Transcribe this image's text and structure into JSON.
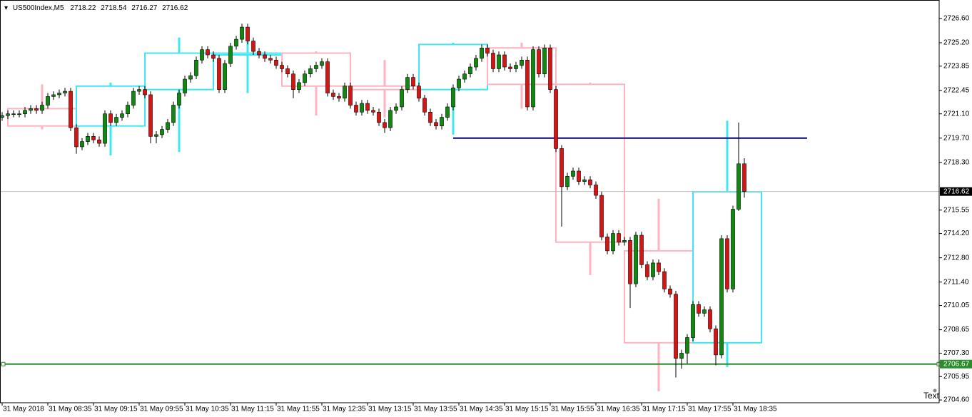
{
  "chart_data": {
    "type": "candlestick",
    "symbol": "US500Index,M5",
    "up_color": "#0b8a0b",
    "down_color": "#e01010",
    "box_up_color": "#3ee8f0",
    "box_down_color": "#ffb3c1",
    "xlim": [
      -0.375,
      164.125
    ],
    "ylim": [
      2704.44,
      2727.5
    ],
    "grid": false,
    "xticks": [
      {
        "value": 0,
        "label": "31 May 2018"
      },
      {
        "value": 8,
        "label": "31 May 08:35"
      },
      {
        "value": 16,
        "label": "31 May 09:15"
      },
      {
        "value": 24,
        "label": "31 May 09:55"
      },
      {
        "value": 32,
        "label": "31 May 10:35"
      },
      {
        "value": 40,
        "label": "31 May 11:15"
      },
      {
        "value": 48,
        "label": "31 May 11:55"
      },
      {
        "value": 56,
        "label": "31 May 12:35"
      },
      {
        "value": 64,
        "label": "31 May 13:15"
      },
      {
        "value": 72,
        "label": "31 May 13:55"
      },
      {
        "value": 80,
        "label": "31 May 14:35"
      },
      {
        "value": 88,
        "label": "31 May 15:15"
      },
      {
        "value": 96,
        "label": "31 May 15:55"
      },
      {
        "value": 104,
        "label": "31 May 16:35"
      },
      {
        "value": 112,
        "label": "31 May 17:15"
      },
      {
        "value": 120,
        "label": "31 May 17:55"
      },
      {
        "value": 128,
        "label": "31 May 18:35"
      }
    ],
    "yticks": [
      {
        "value": 2726.6,
        "label": "2726.60"
      },
      {
        "value": 2725.2,
        "label": "2725.20"
      },
      2723.85,
      2722.45,
      {
        "value": 2721.1,
        "label": "2721.10"
      },
      {
        "value": 2719.7,
        "label": "2719.70"
      },
      {
        "value": 2718.3,
        "label": "2718.30"
      },
      2715.55,
      {
        "value": 2714.2,
        "label": "2714.20"
      },
      {
        "value": 2712.8,
        "label": "2712.80"
      },
      {
        "value": 2711.4,
        "label": "2711.40"
      },
      2710.05,
      2708.65,
      {
        "value": 2707.3,
        "label": "2707.30"
      },
      2705.95,
      {
        "value": 2704.6,
        "label": "2704.60"
      }
    ],
    "open": [
      2720.9,
      2721.0,
      2721.1,
      2721.1,
      2721.1,
      2721.3,
      2721.4,
      2721.3,
      2721.6,
      2722.1,
      2722.2,
      2722.3,
      2722.4,
      2720.3,
      2719.2,
      2719.5,
      2719.8,
      2719.6,
      2719.4,
      2721.1,
      2720.6,
      2720.9,
      2721.1,
      2721.6,
      2722.4,
      2722.5,
      2722.2,
      2719.8,
      2719.9,
      2720.2,
      2720.6,
      2721.6,
      2722.3,
      2723.1,
      2723.3,
      2724.2,
      2724.8,
      2724.5,
      2724.3,
      2722.5,
      2724.0,
      2725.0,
      2725.4,
      2726.1,
      2725.3,
      2724.7,
      2724.5,
      2724.3,
      2724.2,
      2723.9,
      2723.7,
      2723.4,
      2722.5,
      2722.9,
      2723.4,
      2723.7,
      2723.9,
      2724.1,
      2722.3,
      2722.1,
      2722.0,
      2722.7,
      2721.6,
      2721.2,
      2721.7,
      2721.3,
      2721.2,
      2720.6,
      2720.3,
      2721.3,
      2721.5,
      2722.5,
      2723.2,
      2722.7,
      2722.0,
      2721.2,
      2720.6,
      2720.4,
      2720.9,
      2721.5,
      2722.6,
      2723.1,
      2723.4,
      2723.8,
      2724.3,
      2724.9,
      2724.6,
      2723.7,
      2724.5,
      2723.8,
      2723.7,
      2723.9,
      2724.2,
      2721.5,
      2724.8,
      2723.4,
      2724.9,
      2722.5,
      2719.1,
      2716.9,
      2717.5,
      2717.8,
      2717.2,
      2717.3,
      2717.0,
      2716.4,
      2714.0,
      2713.2,
      2714.2,
      2713.7,
      2713.8,
      2711.3,
      2714.1,
      2712.4,
      2711.7,
      2712.5,
      2712.0,
      2711.0,
      2710.7,
      2707.0,
      2707.3,
      2708.2,
      2710.1,
      2709.6,
      2709.8,
      2708.7,
      2707.2,
      2713.9,
      2711.0,
      2715.6,
      2718.22
    ],
    "high": [
      2721.2,
      2721.3,
      2721.3,
      2721.3,
      2721.5,
      2721.6,
      2721.6,
      2721.8,
      2722.3,
      2722.4,
      2722.5,
      2722.6,
      2722.6,
      2720.5,
      2719.7,
      2720.0,
      2720.0,
      2719.8,
      2721.3,
      2721.3,
      2721.1,
      2721.3,
      2721.8,
      2722.6,
      2722.7,
      2722.7,
      2722.4,
      2720.1,
      2720.4,
      2720.8,
      2721.8,
      2722.5,
      2723.3,
      2723.5,
      2724.4,
      2725.0,
      2725.0,
      2724.7,
      2724.5,
      2724.2,
      2725.2,
      2725.6,
      2726.3,
      2726.3,
      2725.5,
      2724.9,
      2724.7,
      2724.5,
      2724.4,
      2724.1,
      2723.9,
      2723.6,
      2723.1,
      2723.6,
      2723.9,
      2724.1,
      2724.3,
      2724.3,
      2722.5,
      2722.3,
      2722.9,
      2722.9,
      2721.8,
      2721.9,
      2721.9,
      2721.5,
      2721.4,
      2720.8,
      2721.5,
      2721.7,
      2722.7,
      2723.4,
      2723.4,
      2722.9,
      2722.2,
      2721.4,
      2720.8,
      2721.1,
      2721.7,
      2722.8,
      2723.3,
      2723.6,
      2724.0,
      2724.5,
      2725.1,
      2725.1,
      2724.8,
      2724.7,
      2724.7,
      2724.0,
      2724.1,
      2724.4,
      2724.4,
      2725.0,
      2725.0,
      2725.1,
      2725.1,
      2722.7,
      2719.3,
      2717.7,
      2718.0,
      2718.0,
      2717.5,
      2717.5,
      2717.2,
      2716.6,
      2714.2,
      2714.4,
      2714.4,
      2714.0,
      2714.0,
      2714.3,
      2714.3,
      2712.6,
      2712.7,
      2712.7,
      2712.2,
      2711.2,
      2710.9,
      2707.5,
      2708.4,
      2710.3,
      2710.3,
      2710.0,
      2710.0,
      2708.9,
      2714.1,
      2714.1,
      2715.8,
      2720.6,
      2718.54
    ],
    "low": [
      2720.7,
      2720.8,
      2720.9,
      2720.9,
      2720.9,
      2721.1,
      2721.1,
      2721.1,
      2721.4,
      2721.9,
      2722.0,
      2722.1,
      2720.1,
      2718.8,
      2719.0,
      2719.3,
      2719.4,
      2719.2,
      2719.2,
      2720.4,
      2720.4,
      2720.7,
      2720.9,
      2721.4,
      2722.2,
      2722.0,
      2719.4,
      2719.4,
      2719.7,
      2720.0,
      2720.4,
      2721.4,
      2722.1,
      2722.9,
      2723.1,
      2724.0,
      2724.3,
      2724.1,
      2722.3,
      2722.3,
      2723.8,
      2724.8,
      2725.2,
      2725.1,
      2724.5,
      2724.3,
      2724.1,
      2724.0,
      2723.7,
      2723.5,
      2723.2,
      2722.0,
      2722.3,
      2722.7,
      2723.2,
      2723.5,
      2723.7,
      2722.1,
      2721.9,
      2721.8,
      2721.8,
      2721.4,
      2721.0,
      2721.0,
      2721.1,
      2721.0,
      2720.4,
      2720.0,
      2720.1,
      2721.1,
      2721.3,
      2722.3,
      2722.5,
      2721.8,
      2721.0,
      2720.4,
      2720.2,
      2720.2,
      2720.7,
      2721.3,
      2722.4,
      2722.9,
      2723.2,
      2723.6,
      2724.1,
      2724.4,
      2723.5,
      2723.5,
      2723.6,
      2723.5,
      2723.5,
      2723.7,
      2721.3,
      2721.3,
      2723.2,
      2723.2,
      2722.3,
      2718.9,
      2714.6,
      2716.7,
      2717.3,
      2717.0,
      2717.0,
      2716.8,
      2716.2,
      2713.8,
      2713.0,
      2713.0,
      2713.5,
      2713.5,
      2709.9,
      2711.1,
      2712.2,
      2711.5,
      2711.5,
      2711.8,
      2710.8,
      2710.5,
      2705.9,
      2706.4,
      2706.7,
      2708.0,
      2709.4,
      2709.4,
      2708.5,
      2706.6,
      2707.0,
      2710.8,
      2710.8,
      2715.5,
      2716.27
    ],
    "close": [
      2721.0,
      2721.1,
      2721.1,
      2721.1,
      2721.3,
      2721.4,
      2721.3,
      2721.6,
      2722.1,
      2722.2,
      2722.3,
      2722.4,
      2720.3,
      2719.2,
      2719.5,
      2719.8,
      2719.6,
      2719.4,
      2721.1,
      2720.6,
      2720.9,
      2721.1,
      2721.6,
      2722.4,
      2722.5,
      2722.2,
      2719.8,
      2719.9,
      2720.2,
      2720.6,
      2721.6,
      2722.3,
      2723.1,
      2723.3,
      2724.2,
      2724.8,
      2724.5,
      2724.3,
      2722.5,
      2724.0,
      2725.0,
      2725.4,
      2726.1,
      2725.3,
      2724.7,
      2724.5,
      2724.3,
      2724.2,
      2723.9,
      2723.7,
      2723.4,
      2722.5,
      2722.9,
      2723.4,
      2723.7,
      2723.9,
      2724.1,
      2722.3,
      2722.1,
      2722.0,
      2722.7,
      2721.6,
      2721.2,
      2721.7,
      2721.3,
      2721.2,
      2720.6,
      2720.3,
      2721.3,
      2721.5,
      2722.5,
      2723.2,
      2722.7,
      2722.0,
      2721.2,
      2720.6,
      2720.4,
      2720.9,
      2721.5,
      2722.6,
      2723.1,
      2723.4,
      2723.8,
      2724.3,
      2724.9,
      2724.6,
      2723.7,
      2724.5,
      2723.8,
      2723.7,
      2723.9,
      2724.2,
      2721.5,
      2724.8,
      2723.4,
      2724.9,
      2722.5,
      2719.1,
      2716.9,
      2717.5,
      2717.8,
      2717.2,
      2717.3,
      2717.0,
      2716.4,
      2714.0,
      2713.2,
      2714.2,
      2713.7,
      2713.8,
      2711.3,
      2714.1,
      2712.4,
      2711.7,
      2712.5,
      2712.0,
      2711.0,
      2710.7,
      2707.0,
      2707.3,
      2708.2,
      2710.1,
      2709.6,
      2709.8,
      2708.7,
      2707.2,
      2713.9,
      2711.0,
      2715.6,
      2718.22,
      2716.62
    ],
    "boxes": [
      {
        "start": 1,
        "end": 13,
        "open": 2721.4,
        "close": 2720.4,
        "high": 2722.8,
        "low": 2720.2
      },
      {
        "start": 13,
        "end": 25,
        "open": 2720.4,
        "close": 2722.7,
        "high": 2722.9,
        "low": 2718.7
      },
      {
        "start": 25,
        "end": 37,
        "open": 2722.5,
        "close": 2724.6,
        "high": 2725.5,
        "low": 2718.9
      },
      {
        "start": 37,
        "end": 49,
        "open": 2724.5,
        "close": 2724.6,
        "high": 2726.1,
        "low": 2722.3
      },
      {
        "start": 49,
        "end": 61,
        "open": 2724.6,
        "close": 2722.7,
        "high": 2724.7,
        "low": 2721.0
      },
      {
        "start": 61,
        "end": 73,
        "open": 2722.7,
        "close": 2722.5,
        "high": 2724.2,
        "low": 2720.9
      },
      {
        "start": 73,
        "end": 85,
        "open": 2722.5,
        "close": 2725.1,
        "high": 2725.2,
        "low": 2719.9
      },
      {
        "start": 85,
        "end": 97,
        "open": 2724.9,
        "close": 2722.8,
        "high": 2725.2,
        "low": 2721.4
      },
      {
        "start": 97,
        "end": 109,
        "open": 2722.8,
        "close": 2713.7,
        "high": 2722.9,
        "low": 2711.8
      },
      {
        "start": 109,
        "end": 121,
        "open": 2713.2,
        "close": 2707.9,
        "high": 2716.2,
        "low": 2705.1
      },
      {
        "start": 121,
        "end": 133,
        "open": 2707.9,
        "close": 2716.6,
        "high": 2720.7,
        "low": 2706.5
      }
    ],
    "trend_line": {
      "value": 2719.7,
      "start": 79,
      "end": 141,
      "color": "#00007f"
    },
    "level_line": {
      "value": 2706.67,
      "color": "#2a8c2a"
    },
    "current_line_color": "#c0c0c0",
    "text_label": "Text"
  }
}
